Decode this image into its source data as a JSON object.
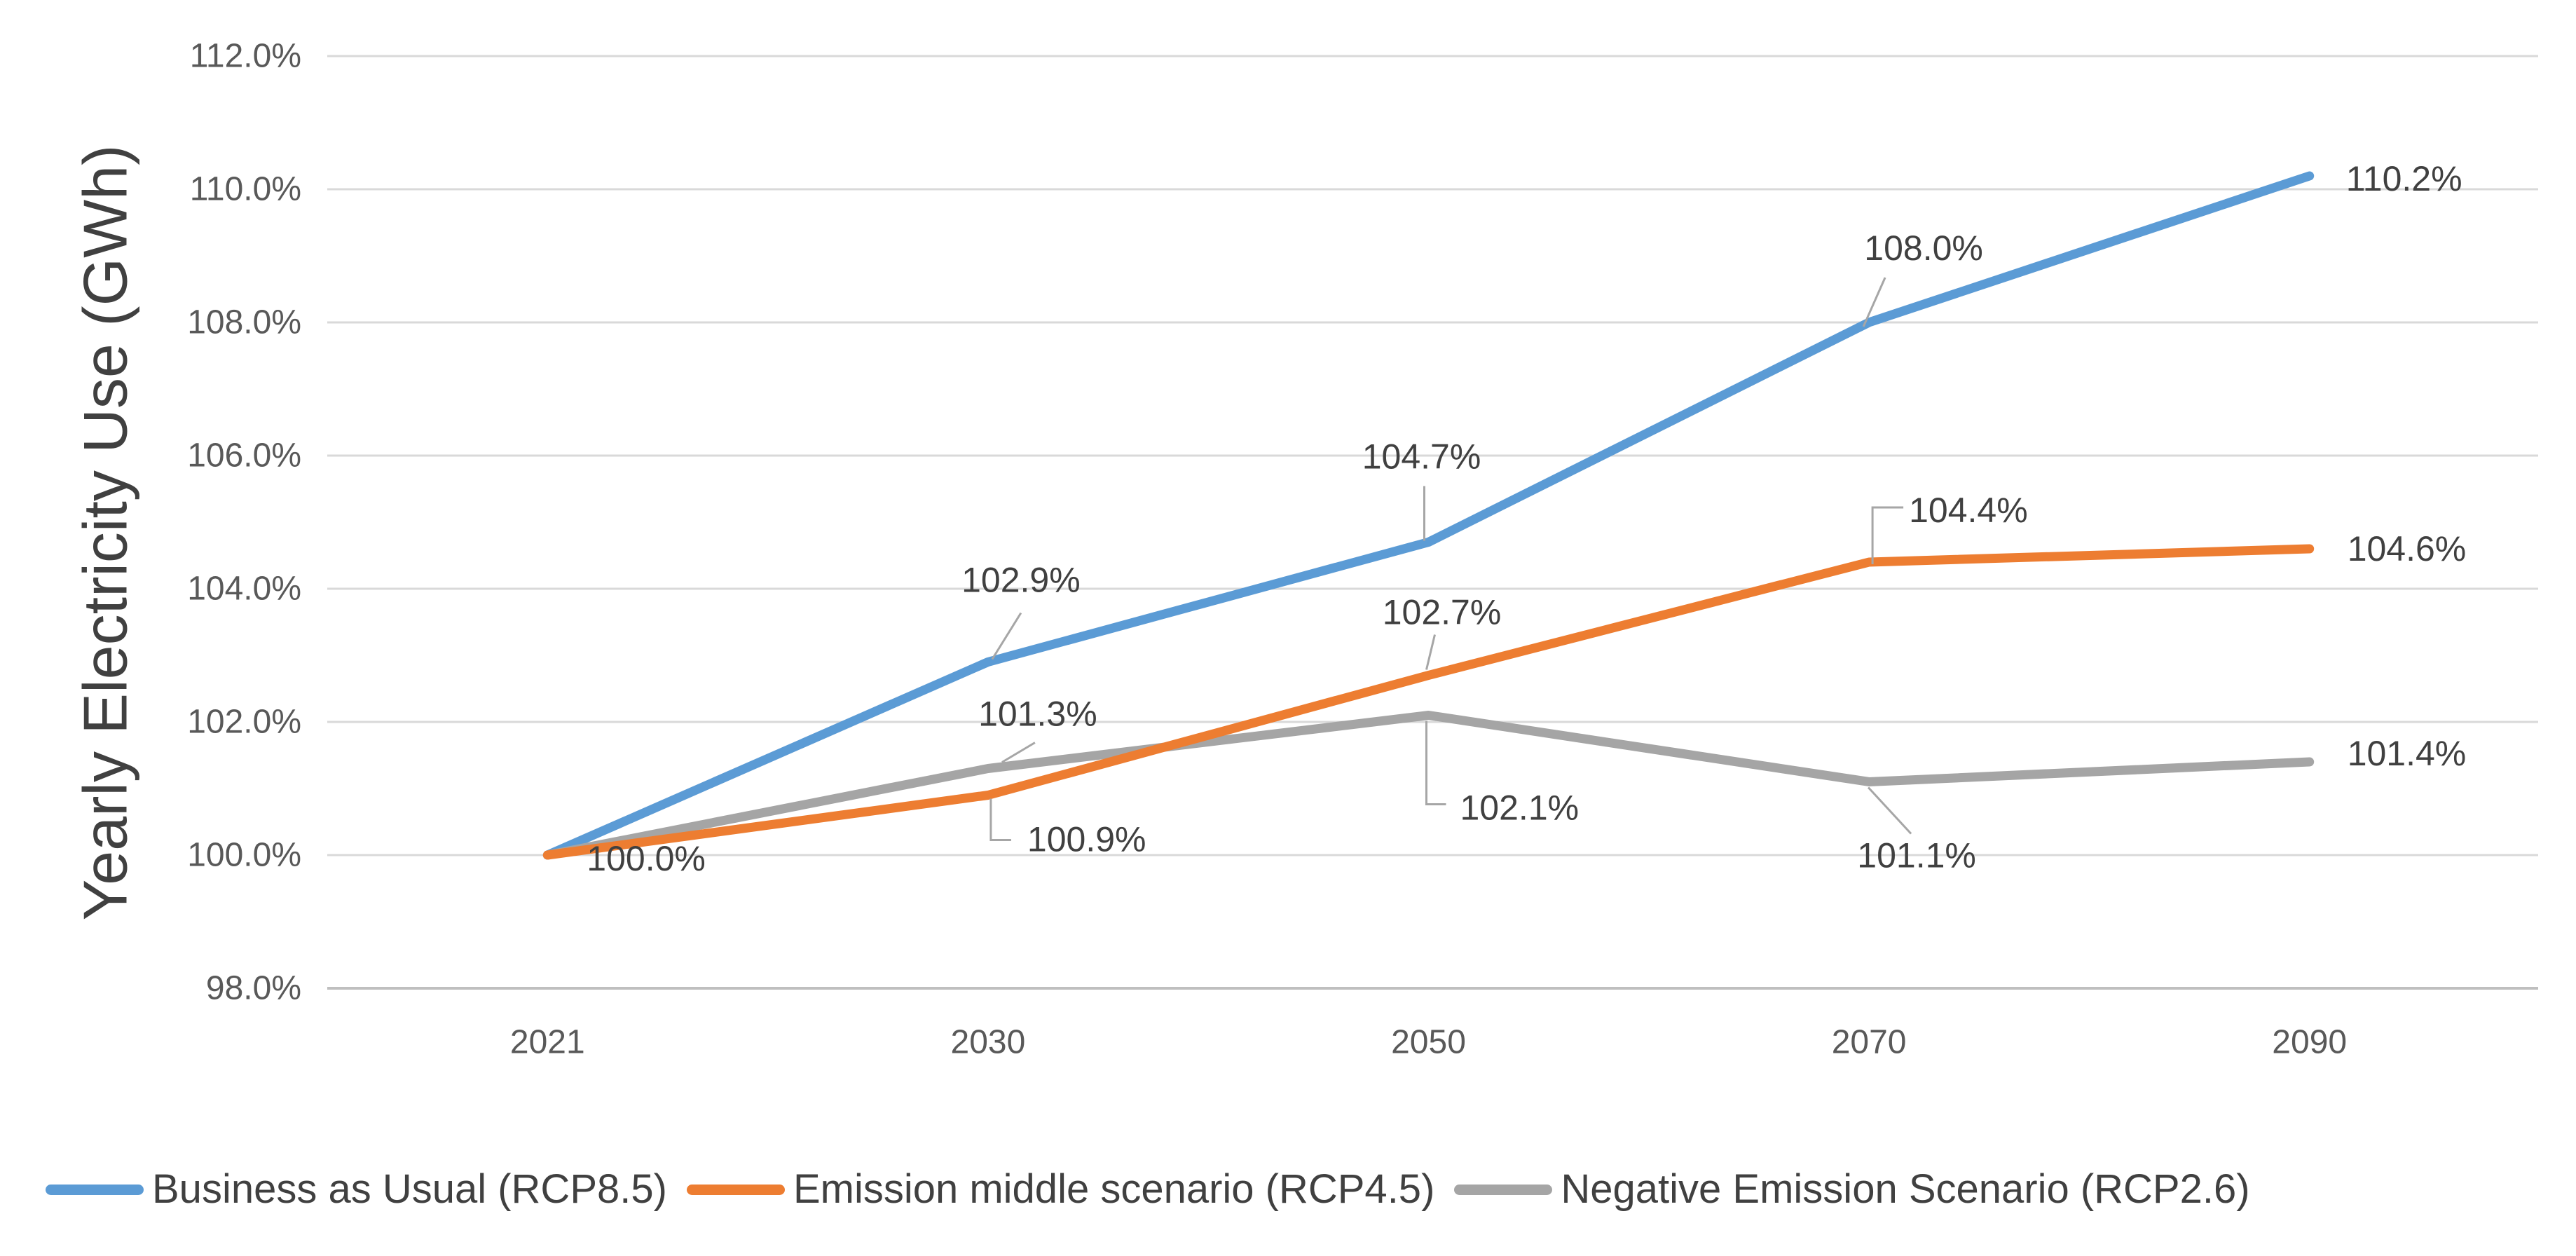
{
  "chart_data": {
    "type": "line",
    "title": "",
    "ylabel": "Yearly Electricity Use (GWh)",
    "xlabel": "",
    "categories": [
      "2021",
      "2030",
      "2050",
      "2070",
      "2090"
    ],
    "y_ticks": [
      "112.0%",
      "110.0%",
      "108.0%",
      "106.0%",
      "104.0%",
      "102.0%",
      "100.0%",
      "98.0%"
    ],
    "y_tick_values": [
      112,
      110,
      108,
      106,
      104,
      102,
      100,
      98
    ],
    "ylim": [
      98,
      112
    ],
    "grid": true,
    "legend_position": "bottom",
    "series": [
      {
        "name": "Business as Usual (RCP8.5)",
        "color": "#5B9BD5",
        "values": [
          100.0,
          102.9,
          104.7,
          108.0,
          110.2
        ],
        "point_labels": [
          "100.0%",
          "102.9%",
          "104.7%",
          "108.0%",
          "110.2%"
        ]
      },
      {
        "name": "Emission middle scenario (RCP4.5)",
        "color": "#ED7D31",
        "values": [
          100.0,
          100.9,
          102.7,
          104.4,
          104.6
        ],
        "point_labels": [
          "",
          "100.9%",
          "102.7%",
          "104.4%",
          "104.6%"
        ]
      },
      {
        "name": "Negative Emission Scenario (RCP2.6)",
        "color": "#A5A5A5",
        "values": [
          100.0,
          101.3,
          102.1,
          101.1,
          101.4
        ],
        "point_labels": [
          "",
          "101.3%",
          "102.1%",
          "101.1%",
          "101.4%"
        ]
      }
    ],
    "colors": {
      "gridline": "#D9D9D9",
      "axis_line": "#BFBFBF",
      "tick_text": "#595959",
      "data_label_text": "#404040",
      "leader_line": "#A6A6A6",
      "background": "#FFFFFF"
    }
  }
}
